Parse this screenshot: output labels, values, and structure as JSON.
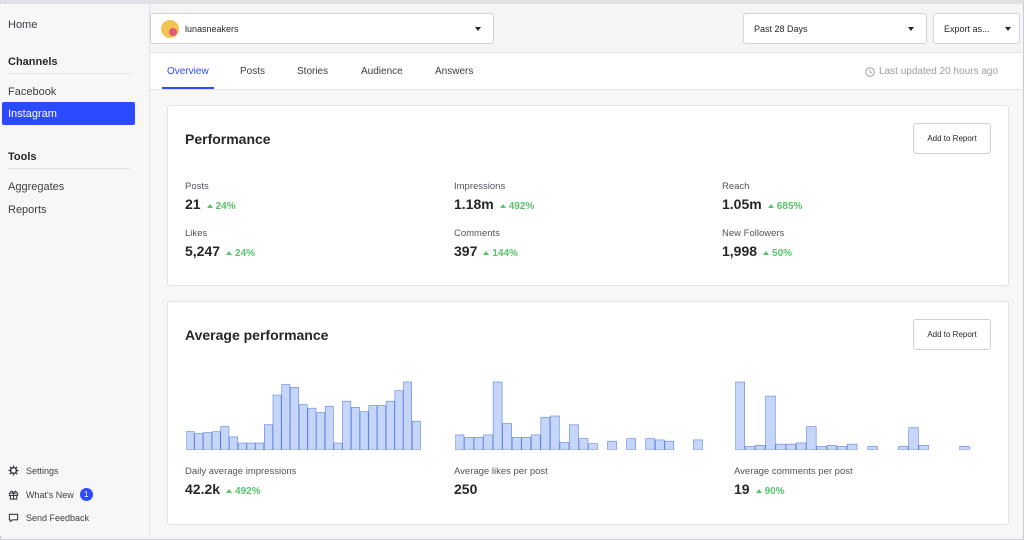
{
  "sidebar": {
    "home": "Home",
    "channels_heading": "Channels",
    "channels": [
      "Facebook",
      "Instagram"
    ],
    "active_channel": "Instagram",
    "tools_heading": "Tools",
    "tools": [
      "Aggregates",
      "Reports"
    ],
    "footer": {
      "settings": "Settings",
      "whats_new": "What's New",
      "whats_new_count": "1",
      "send_feedback": "Send Feedback"
    }
  },
  "topbar": {
    "account": "lunasneakers",
    "date_range": "Past 28 Days",
    "export": "Export as..."
  },
  "tabs": [
    "Overview",
    "Posts",
    "Stories",
    "Audience",
    "Answers"
  ],
  "active_tab": "Overview",
  "last_updated": "Last updated 20 hours ago",
  "performance": {
    "title": "Performance",
    "add_button": "Add to Report",
    "metrics": [
      {
        "label": "Posts",
        "value": "21",
        "change": "24%"
      },
      {
        "label": "Impressions",
        "value": "1.18m",
        "change": "492%"
      },
      {
        "label": "Reach",
        "value": "1.05m",
        "change": "685%"
      },
      {
        "label": "Likes",
        "value": "5,247",
        "change": "24%"
      },
      {
        "label": "Comments",
        "value": "397",
        "change": "144%"
      },
      {
        "label": "New Followers",
        "value": "1,998",
        "change": "50%"
      }
    ]
  },
  "average": {
    "title": "Average performance",
    "add_button": "Add to Report",
    "metrics": [
      {
        "label": "Daily average impressions",
        "value": "42.2k",
        "change": "492%"
      },
      {
        "label": "Average likes per post",
        "value": "250",
        "change": ""
      },
      {
        "label": "Average comments per post",
        "value": "19",
        "change": "90%"
      }
    ]
  },
  "chart_data": [
    {
      "type": "bar",
      "values": [
        21,
        19,
        20,
        21,
        27,
        15,
        8,
        8,
        8,
        29,
        63,
        75,
        72,
        52,
        48,
        43,
        50,
        8,
        56,
        49,
        44,
        51,
        51,
        56,
        68,
        78,
        33
      ]
    },
    {
      "type": "bar",
      "values": [
        12,
        10,
        10,
        12,
        54,
        21,
        10,
        10,
        12,
        26,
        27,
        6,
        20,
        9,
        5,
        0,
        7,
        0,
        9,
        0,
        9,
        8,
        7,
        0,
        0,
        8
      ]
    },
    {
      "type": "bar",
      "values": [
        58,
        3,
        4,
        46,
        5,
        5,
        6,
        20,
        3,
        4,
        3,
        5,
        0,
        3,
        0,
        0,
        3,
        19,
        4,
        0,
        0,
        0,
        3
      ]
    }
  ],
  "colors": {
    "accent": "#2c4bff",
    "positive": "#5ac26b",
    "bar_fill": "#c6d6f9",
    "bar_stroke": "#5d7fe0"
  }
}
